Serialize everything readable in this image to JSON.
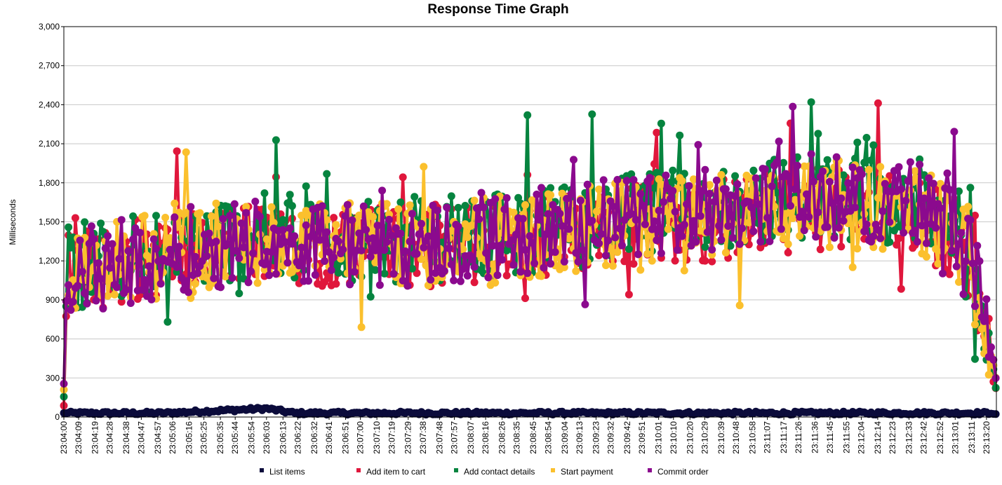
{
  "chart_data": {
    "type": "line",
    "title": "Response Time Graph",
    "xlabel": "",
    "ylabel": "Milliseconds",
    "ylim": [
      0,
      3000
    ],
    "yticks": [
      0,
      300,
      600,
      900,
      1200,
      1500,
      1800,
      2100,
      2400,
      2700,
      3000
    ],
    "ytick_labels": [
      "0",
      "300",
      "600",
      "900",
      "1,200",
      "1,500",
      "1,800",
      "2,100",
      "2,400",
      "2,700",
      "3,000"
    ],
    "x_start": "23:04:00",
    "x_end": "23:13:26",
    "x_tick_labels": [
      "23:04:00",
      "23:04:09",
      "23:04:19",
      "23:04:28",
      "23:04:38",
      "23:04:47",
      "23:04:57",
      "23:05:06",
      "23:05:16",
      "23:05:25",
      "23:05:35",
      "23:05:44",
      "23:05:54",
      "23:06:03",
      "23:06:13",
      "23:06:22",
      "23:06:32",
      "23:06:41",
      "23:06:51",
      "23:07:00",
      "23:07:10",
      "23:07:19",
      "23:07:29",
      "23:07:38",
      "23:07:48",
      "23:07:57",
      "23:08:07",
      "23:08:16",
      "23:08:26",
      "23:08:35",
      "23:08:45",
      "23:08:54",
      "23:09:04",
      "23:09:13",
      "23:09:23",
      "23:09:32",
      "23:09:42",
      "23:09:51",
      "23:10:01",
      "23:10:10",
      "23:10:20",
      "23:10:29",
      "23:10:39",
      "23:10:48",
      "23:10:58",
      "23:11:07",
      "23:11:17",
      "23:11:26",
      "23:11:36",
      "23:11:45",
      "23:11:55",
      "23:12:04",
      "23:12:14",
      "23:12:23",
      "23:12:33",
      "23:12:42",
      "23:12:52",
      "23:13:01",
      "23:13:11",
      "23:13:20"
    ],
    "grid": "horizontal",
    "legend_position": "bottom",
    "series": [
      {
        "name": "List items",
        "color": "#0b0b3b",
        "profile": [
          {
            "t": "23:04:00",
            "ms": 30
          },
          {
            "t": "23:05:00",
            "ms": 30
          },
          {
            "t": "23:06:03",
            "ms": 65
          },
          {
            "t": "23:06:20",
            "ms": 30
          },
          {
            "t": "23:13:22",
            "ms": 30
          },
          {
            "t": "23:13:26",
            "ms": 20
          }
        ],
        "variation": 12
      },
      {
        "name": "Add item to cart",
        "color": "#e0173c",
        "profile": [
          {
            "t": "23:04:00",
            "ms": 60
          },
          {
            "t": "23:04:02",
            "ms": 1100
          },
          {
            "t": "23:05:00",
            "ms": 1250
          },
          {
            "t": "23:06:00",
            "ms": 1350
          },
          {
            "t": "23:07:00",
            "ms": 1300
          },
          {
            "t": "23:08:00",
            "ms": 1320
          },
          {
            "t": "23:09:00",
            "ms": 1400
          },
          {
            "t": "23:09:50",
            "ms": 1500
          },
          {
            "t": "23:10:30",
            "ms": 1500
          },
          {
            "t": "23:11:30",
            "ms": 1600
          },
          {
            "t": "23:12:40",
            "ms": 1550
          },
          {
            "t": "23:13:05",
            "ms": 1350
          },
          {
            "t": "23:13:20",
            "ms": 700
          },
          {
            "t": "23:13:26",
            "ms": 150
          }
        ],
        "variation": 320
      },
      {
        "name": "Add contact details",
        "color": "#06843f",
        "profile": [
          {
            "t": "23:04:00",
            "ms": 170
          },
          {
            "t": "23:04:02",
            "ms": 1150
          },
          {
            "t": "23:05:00",
            "ms": 1300
          },
          {
            "t": "23:06:00",
            "ms": 1400
          },
          {
            "t": "23:07:00",
            "ms": 1350
          },
          {
            "t": "23:08:00",
            "ms": 1380
          },
          {
            "t": "23:09:00",
            "ms": 1450
          },
          {
            "t": "23:09:50",
            "ms": 1550
          },
          {
            "t": "23:10:30",
            "ms": 1600
          },
          {
            "t": "23:11:30",
            "ms": 1700
          },
          {
            "t": "23:12:40",
            "ms": 1650
          },
          {
            "t": "23:13:05",
            "ms": 1400
          },
          {
            "t": "23:13:20",
            "ms": 750
          },
          {
            "t": "23:13:26",
            "ms": 200
          }
        ],
        "variation": 330
      },
      {
        "name": "Start payment",
        "color": "#fbc02d",
        "profile": [
          {
            "t": "23:04:00",
            "ms": 250
          },
          {
            "t": "23:04:02",
            "ms": 1100
          },
          {
            "t": "23:05:00",
            "ms": 1250
          },
          {
            "t": "23:06:00",
            "ms": 1350
          },
          {
            "t": "23:07:00",
            "ms": 1300
          },
          {
            "t": "23:08:00",
            "ms": 1330
          },
          {
            "t": "23:09:00",
            "ms": 1400
          },
          {
            "t": "23:09:50",
            "ms": 1500
          },
          {
            "t": "23:10:30",
            "ms": 1550
          },
          {
            "t": "23:11:30",
            "ms": 1650
          },
          {
            "t": "23:12:40",
            "ms": 1600
          },
          {
            "t": "23:13:05",
            "ms": 1350
          },
          {
            "t": "23:13:20",
            "ms": 750
          },
          {
            "t": "23:13:26",
            "ms": 250
          }
        ],
        "variation": 340
      },
      {
        "name": "Commit order",
        "color": "#8b0a8e",
        "profile": [
          {
            "t": "23:04:00",
            "ms": 250
          },
          {
            "t": "23:04:02",
            "ms": 1100
          },
          {
            "t": "23:05:00",
            "ms": 1250
          },
          {
            "t": "23:06:00",
            "ms": 1380
          },
          {
            "t": "23:07:00",
            "ms": 1320
          },
          {
            "t": "23:08:00",
            "ms": 1350
          },
          {
            "t": "23:09:00",
            "ms": 1450
          },
          {
            "t": "23:09:50",
            "ms": 1550
          },
          {
            "t": "23:10:30",
            "ms": 1600
          },
          {
            "t": "23:11:30",
            "ms": 1700
          },
          {
            "t": "23:12:40",
            "ms": 1650
          },
          {
            "t": "23:13:05",
            "ms": 1400
          },
          {
            "t": "23:13:20",
            "ms": 800
          },
          {
            "t": "23:13:26",
            "ms": 300
          }
        ],
        "variation": 330
      }
    ]
  }
}
